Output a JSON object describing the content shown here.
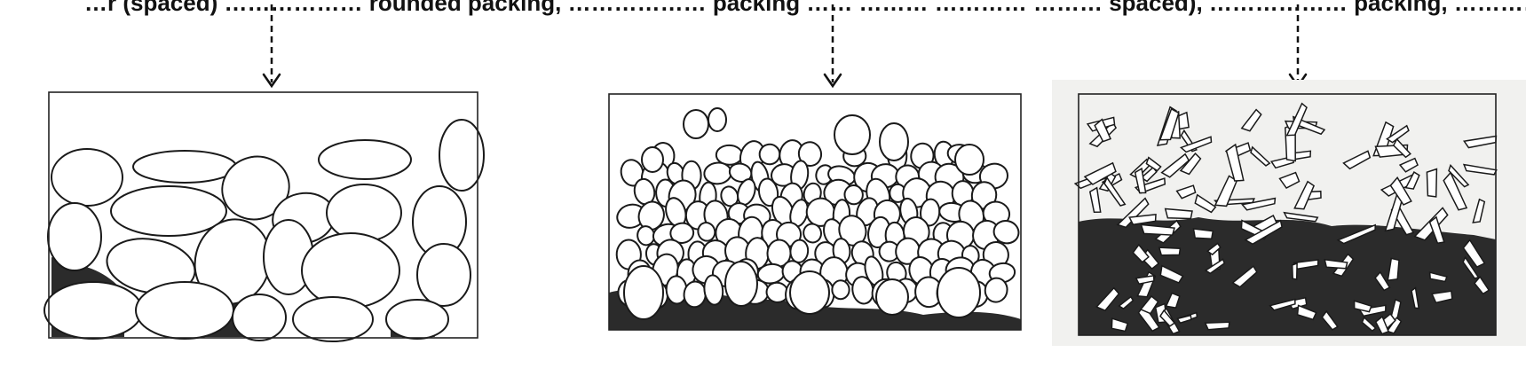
{
  "caption": {
    "text": "…r (spaced) ……………… rounded packing, ……………… packing …… ……… ………… ……… spaced), ……………… packing, …………………… packing"
  },
  "colors": {
    "ink": "#1a1a1a",
    "matrix": "#2b2b2b",
    "paper": "#ffffff",
    "photo_background": "#f1f1ef"
  },
  "panels": [
    {
      "id": "large-rounded-stones-panel",
      "content": "large rounded stones"
    },
    {
      "id": "small-rounded-stones-panel",
      "content": "small rounded stones"
    },
    {
      "id": "angular-fragments-panel",
      "content": "angular fragments"
    }
  ]
}
